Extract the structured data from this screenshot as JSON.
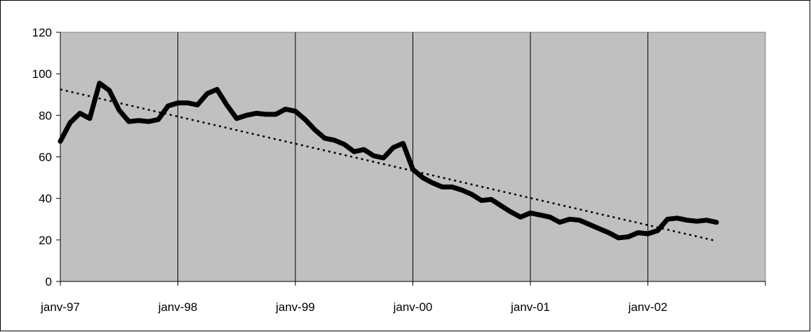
{
  "chart_data": {
    "type": "line",
    "title": "",
    "xlabel": "",
    "ylabel": "",
    "x_tick_labels": [
      "janv-97",
      "janv-98",
      "janv-99",
      "janv-00",
      "janv-01",
      "janv-02"
    ],
    "xlim": [
      "1997-01",
      "2003-01"
    ],
    "ylim": [
      0,
      120
    ],
    "y_ticks": [
      0,
      20,
      40,
      60,
      80,
      100,
      120
    ],
    "grid": "vertical",
    "legend": "none",
    "plot_background": "#c0c0c0",
    "series": [
      {
        "style": "solid-thick",
        "color": "#000000",
        "x": [
          "1997-01",
          "1997-02",
          "1997-03",
          "1997-04",
          "1997-05",
          "1997-06",
          "1997-07",
          "1997-08",
          "1997-09",
          "1997-10",
          "1997-11",
          "1997-12",
          "1998-01",
          "1998-02",
          "1998-03",
          "1998-04",
          "1998-05",
          "1998-06",
          "1998-07",
          "1998-08",
          "1998-09",
          "1998-10",
          "1998-11",
          "1998-12",
          "1999-01",
          "1999-02",
          "1999-03",
          "1999-04",
          "1999-05",
          "1999-06",
          "1999-07",
          "1999-08",
          "1999-09",
          "1999-10",
          "1999-11",
          "1999-12",
          "2000-01",
          "2000-02",
          "2000-03",
          "2000-04",
          "2000-05",
          "2000-06",
          "2000-07",
          "2000-08",
          "2000-09",
          "2000-10",
          "2000-11",
          "2000-12",
          "2001-01",
          "2001-02",
          "2001-03",
          "2001-04",
          "2001-05",
          "2001-06",
          "2001-07",
          "2001-08",
          "2001-09",
          "2001-10",
          "2001-11",
          "2001-12",
          "2002-01",
          "2002-02",
          "2002-03",
          "2002-04",
          "2002-05",
          "2002-06",
          "2002-07",
          "2002-08"
        ],
        "values": [
          67.5,
          76.5,
          81,
          78.5,
          95.5,
          92,
          82.5,
          77,
          77.5,
          77,
          78,
          84.5,
          86,
          86,
          85,
          90.5,
          92.5,
          85,
          78.5,
          80,
          81,
          80.5,
          80.5,
          83,
          82,
          78,
          73,
          69,
          68,
          66,
          62.5,
          63.5,
          60.5,
          59.5,
          64.5,
          66.5,
          54,
          50,
          47.5,
          45.5,
          45.5,
          44,
          42,
          39,
          39.5,
          36.5,
          33.5,
          31,
          33,
          32,
          31,
          28.5,
          30,
          29.5,
          27.5,
          25.5,
          23.5,
          21,
          21.5,
          23.5,
          23,
          24.5,
          30,
          30.5,
          29.5,
          29,
          29.5,
          28.5
        ]
      },
      {
        "style": "dotted-trend",
        "color": "#000000",
        "x": [
          "1997-01",
          "2002-08"
        ],
        "values": [
          92.5,
          19.5
        ]
      }
    ]
  }
}
